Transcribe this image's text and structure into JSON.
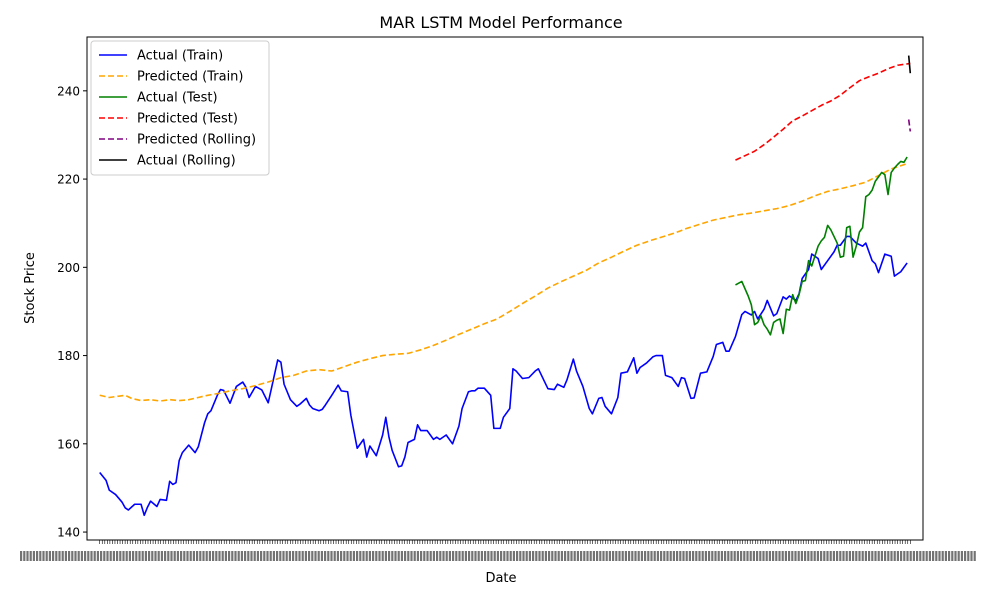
{
  "chart_data": {
    "type": "line",
    "title": "MAR LSTM Model Performance",
    "xlabel": "Date",
    "ylabel": "Stock Price",
    "ylim": [
      138.2,
      252.2
    ],
    "yticks": [
      140,
      160,
      180,
      200,
      220,
      240
    ],
    "x_tick_count": 320,
    "x_tick_labels_overlapping": true,
    "legend_position": "top-left",
    "grid": false,
    "series": [
      {
        "name": "Actual (Train)",
        "color": "#0000ff",
        "style": "solid",
        "x": [
          0,
          2,
          3,
          5,
          7,
          8,
          9,
          11,
          13,
          14,
          15,
          16,
          18,
          19,
          21,
          22,
          23,
          24,
          25,
          26,
          28,
          30,
          31,
          33,
          34,
          35,
          37,
          38,
          39,
          41,
          43,
          45,
          46,
          47,
          49,
          51,
          53,
          54,
          56,
          57,
          58,
          60,
          62,
          63,
          65,
          66,
          67,
          69,
          70,
          71,
          73,
          75,
          76,
          78,
          79,
          81,
          83,
          84,
          85,
          87,
          89,
          90,
          91,
          92,
          94,
          95,
          96,
          97,
          99,
          100,
          101,
          103,
          105,
          106,
          107,
          109,
          111,
          113,
          114,
          116,
          117,
          118,
          119,
          121,
          123,
          124,
          126,
          127,
          129,
          130,
          131,
          133,
          135,
          137,
          138,
          140,
          141,
          143,
          144,
          146,
          147,
          149,
          150,
          152,
          154,
          155,
          157,
          158,
          159,
          161,
          163,
          164,
          166,
          168,
          169,
          170,
          172,
          174,
          175,
          177,
          178,
          180,
          182,
          183,
          184,
          186,
          187,
          189,
          191,
          193,
          194,
          196,
          197,
          198,
          200,
          202,
          203,
          205,
          206,
          207,
          209,
          210,
          212,
          213,
          215,
          216,
          217,
          219,
          220,
          221,
          223,
          224,
          226,
          227,
          229,
          231,
          232,
          233,
          235,
          236,
          238,
          240,
          241,
          243,
          244,
          245,
          247,
          249,
          250,
          252,
          254
        ],
        "y": [
          153.5,
          151.7,
          149.5,
          148.5,
          146.8,
          145.5,
          145.0,
          146.3,
          146.3,
          143.8,
          145.6,
          147.0,
          145.8,
          147.4,
          147.2,
          151.5,
          150.8,
          151.2,
          156.2,
          158.0,
          159.7,
          158.0,
          159.3,
          164.8,
          166.8,
          167.5,
          171.0,
          172.3,
          172.1,
          169.2,
          173.0,
          174.0,
          172.8,
          170.5,
          173.0,
          172.2,
          169.3,
          172.5,
          179.0,
          178.5,
          173.5,
          170.0,
          168.5,
          169.0,
          170.3,
          168.8,
          168.0,
          167.5,
          167.8,
          168.8,
          171.0,
          173.3,
          172.0,
          171.8,
          166.5,
          159.0,
          161.0,
          157.0,
          159.5,
          157.3,
          162.0,
          166.0,
          161.5,
          158.5,
          154.8,
          155.0,
          157.0,
          160.3,
          161.0,
          164.3,
          163.0,
          163.0,
          161.0,
          161.5,
          161.0,
          162.0,
          160.0,
          164.0,
          168.0,
          171.8,
          172.0,
          172.0,
          172.6,
          172.6,
          171.0,
          163.5,
          163.5,
          166.0,
          168.0,
          177.0,
          176.5,
          174.8,
          175.0,
          176.5,
          177.0,
          174.0,
          172.5,
          172.3,
          173.5,
          172.8,
          174.5,
          179.2,
          176.5,
          173.0,
          168.0,
          166.8,
          170.3,
          170.5,
          168.5,
          166.8,
          170.5,
          176.0,
          176.3,
          179.5,
          176.0,
          177.3,
          178.3,
          179.7,
          180.0,
          180.0,
          175.5,
          175.0,
          173.0,
          175.0,
          174.8,
          170.3,
          170.4,
          176.0,
          176.3,
          179.8,
          182.5,
          183.0,
          181.0,
          181.0,
          184.3,
          189.3,
          190.0,
          189.2,
          190.0,
          188.3,
          190.5,
          192.5,
          189.0,
          189.5,
          193.3,
          192.8,
          193.5,
          192.5,
          194.0,
          197.5,
          199.5,
          203.0,
          202.0,
          199.5,
          201.5,
          203.5,
          205.0,
          205.0,
          207.0,
          207.0,
          205.5,
          204.8,
          205.5,
          201.5,
          200.8,
          198.8,
          203.0,
          202.5,
          198.0,
          199.0,
          201.0
        ]
      },
      {
        "name": "Predicted (Train)",
        "color": "#ffa500",
        "style": "dashed",
        "x": [
          0,
          3,
          6,
          8,
          10,
          13,
          16,
          19,
          22,
          25,
          28,
          31,
          34,
          38,
          41,
          45,
          49,
          53,
          57,
          61,
          65,
          69,
          73,
          77,
          81,
          85,
          89,
          93,
          97,
          101,
          105,
          109,
          113,
          117,
          121,
          125,
          129,
          133,
          137,
          141,
          145,
          149,
          153,
          157,
          161,
          165,
          169,
          173,
          177,
          181,
          185,
          189,
          193,
          197,
          201,
          205,
          209,
          213,
          217,
          221,
          225,
          229,
          233,
          237,
          241,
          245,
          249,
          254
        ],
        "y": [
          171.0,
          170.5,
          170.8,
          171.0,
          170.3,
          169.8,
          170.0,
          169.7,
          170.0,
          169.8,
          170.0,
          170.5,
          171.0,
          171.5,
          172.0,
          172.5,
          173.2,
          174.0,
          175.0,
          175.5,
          176.5,
          176.8,
          176.5,
          177.5,
          178.5,
          179.3,
          180.0,
          180.3,
          180.5,
          181.3,
          182.3,
          183.5,
          184.8,
          186.0,
          187.2,
          188.3,
          190.0,
          191.8,
          193.5,
          195.3,
          196.7,
          198.0,
          199.3,
          201.0,
          202.3,
          203.7,
          205.0,
          206.0,
          206.9,
          207.8,
          208.9,
          209.8,
          210.7,
          211.3,
          211.9,
          212.3,
          212.8,
          213.3,
          214.0,
          215.0,
          216.2,
          217.2,
          217.8,
          218.5,
          219.3,
          220.8,
          222.3,
          223.5
        ]
      },
      {
        "name": "Actual (Test)",
        "color": "#008000",
        "style": "solid",
        "x": [
          200,
          202,
          204,
          205,
          206,
          207,
          208,
          209,
          210,
          211,
          212,
          213,
          214,
          215,
          216,
          217,
          218,
          219,
          220,
          221,
          222,
          223,
          224,
          226,
          227,
          228,
          229,
          230,
          232,
          233,
          234,
          235,
          236,
          237,
          238,
          239,
          240,
          241,
          242,
          243,
          244,
          245,
          246,
          247,
          248,
          249,
          250,
          251,
          252,
          253,
          254
        ],
        "y": [
          196.0,
          196.8,
          193.5,
          191.5,
          187.0,
          187.5,
          189.0,
          187.0,
          186.0,
          184.7,
          187.5,
          188.0,
          188.3,
          185.0,
          190.5,
          190.3,
          193.8,
          191.8,
          193.8,
          196.8,
          197.0,
          201.5,
          200.3,
          204.8,
          206.0,
          206.8,
          209.5,
          208.5,
          205.5,
          202.3,
          202.5,
          209.0,
          209.3,
          202.3,
          204.8,
          208.0,
          209.0,
          216.0,
          216.5,
          217.5,
          219.5,
          220.5,
          221.5,
          221.0,
          216.5,
          221.5,
          222.5,
          223.3,
          224.0,
          223.8,
          225.0
        ]
      },
      {
        "name": "Predicted (Test)",
        "color": "#ff0000",
        "style": "dashed",
        "x": [
          200,
          203,
          206,
          209,
          212,
          215,
          218,
          221,
          224,
          227,
          230,
          233,
          236,
          239,
          242,
          245,
          248,
          251,
          253,
          255
        ],
        "y": [
          224.3,
          225.3,
          226.3,
          227.8,
          229.5,
          231.3,
          233.2,
          234.3,
          235.5,
          236.7,
          237.7,
          239.0,
          240.7,
          242.3,
          243.2,
          244.0,
          245.0,
          245.8,
          246.0,
          246.2
        ]
      },
      {
        "name": "Predicted (Rolling)",
        "color": "#800080",
        "style": "dashed",
        "x": [
          254.5,
          255.0
        ],
        "y": [
          233.5,
          230.8
        ]
      },
      {
        "name": "Actual (Rolling)",
        "color": "#000000",
        "style": "solid",
        "x": [
          254.5,
          255.0
        ],
        "y": [
          248.0,
          244.0
        ]
      }
    ]
  }
}
